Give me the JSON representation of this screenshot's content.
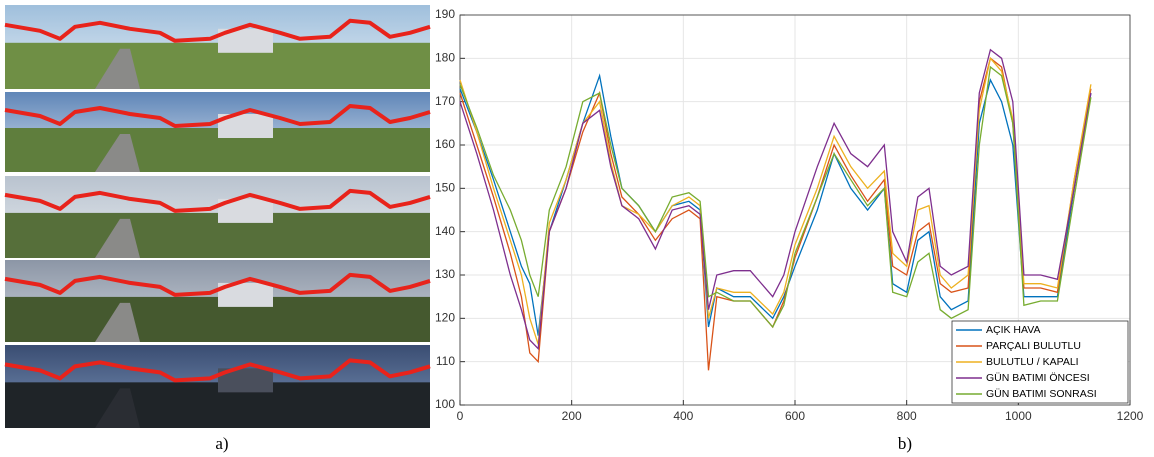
{
  "figure_labels": [
    "a)",
    "b)"
  ],
  "chart_data": {
    "type": "line",
    "x": [
      0,
      30,
      60,
      90,
      110,
      125,
      140,
      160,
      190,
      220,
      250,
      270,
      290,
      320,
      350,
      380,
      410,
      430,
      445,
      460,
      490,
      520,
      560,
      580,
      600,
      640,
      670,
      700,
      730,
      760,
      775,
      800,
      820,
      840,
      860,
      880,
      910,
      930,
      950,
      970,
      990,
      1010,
      1040,
      1070,
      1100,
      1130
    ],
    "series": [
      {
        "name": "AÇIK HAVA",
        "color": "#0072bd",
        "values": [
          173,
          163,
          152,
          140,
          132,
          128,
          116,
          140,
          152,
          165,
          176,
          162,
          150,
          146,
          140,
          146,
          147,
          145,
          118,
          127,
          125,
          125,
          120,
          125,
          132,
          145,
          158,
          150,
          145,
          150,
          128,
          126,
          138,
          140,
          125,
          122,
          124,
          165,
          175,
          170,
          160,
          125,
          125,
          125,
          150,
          172
        ]
      },
      {
        "name": "PARÇALI BULUTLU",
        "color": "#d95319",
        "values": [
          172,
          160,
          148,
          135,
          125,
          112,
          110,
          140,
          150,
          163,
          172,
          158,
          148,
          144,
          138,
          143,
          145,
          143,
          108,
          125,
          124,
          124,
          118,
          124,
          134,
          148,
          160,
          153,
          147,
          152,
          132,
          130,
          140,
          142,
          128,
          126,
          127,
          170,
          180,
          178,
          165,
          127,
          127,
          126,
          152,
          173
        ]
      },
      {
        "name": "BULUTLU / KAPALI",
        "color": "#edb120",
        "values": [
          175,
          163,
          150,
          138,
          130,
          120,
          114,
          142,
          152,
          165,
          170,
          156,
          146,
          144,
          140,
          146,
          148,
          146,
          120,
          127,
          126,
          126,
          121,
          126,
          137,
          150,
          162,
          155,
          150,
          154,
          135,
          132,
          145,
          146,
          130,
          127,
          130,
          168,
          180,
          177,
          166,
          128,
          128,
          127,
          152,
          174
        ]
      },
      {
        "name": "GÜN BATIMI ÖNCESI",
        "color": "#7e2f8e",
        "values": [
          170,
          158,
          145,
          130,
          122,
          115,
          113,
          140,
          150,
          165,
          168,
          155,
          146,
          143,
          136,
          145,
          146,
          144,
          122,
          130,
          131,
          131,
          125,
          130,
          140,
          155,
          165,
          158,
          155,
          160,
          140,
          133,
          148,
          150,
          132,
          130,
          132,
          172,
          182,
          180,
          170,
          130,
          130,
          129,
          150,
          172
        ]
      },
      {
        "name": "GÜN BATIMI SONRASI",
        "color": "#77ac30",
        "values": [
          174,
          164,
          153,
          145,
          138,
          130,
          125,
          145,
          155,
          170,
          172,
          160,
          150,
          146,
          140,
          148,
          149,
          147,
          125,
          126,
          124,
          124,
          118,
          123,
          135,
          148,
          158,
          152,
          146,
          150,
          126,
          125,
          133,
          135,
          122,
          120,
          122,
          160,
          178,
          176,
          165,
          123,
          124,
          124,
          148,
          171
        ]
      }
    ],
    "xlim": [
      0,
      1200
    ],
    "xticks": [
      0,
      200,
      400,
      600,
      800,
      1000,
      1200
    ],
    "ylim": [
      100,
      190
    ],
    "yticks": [
      100,
      110,
      120,
      130,
      140,
      150,
      160,
      170,
      180,
      190
    ],
    "grid": true,
    "legend": "lower-right"
  }
}
